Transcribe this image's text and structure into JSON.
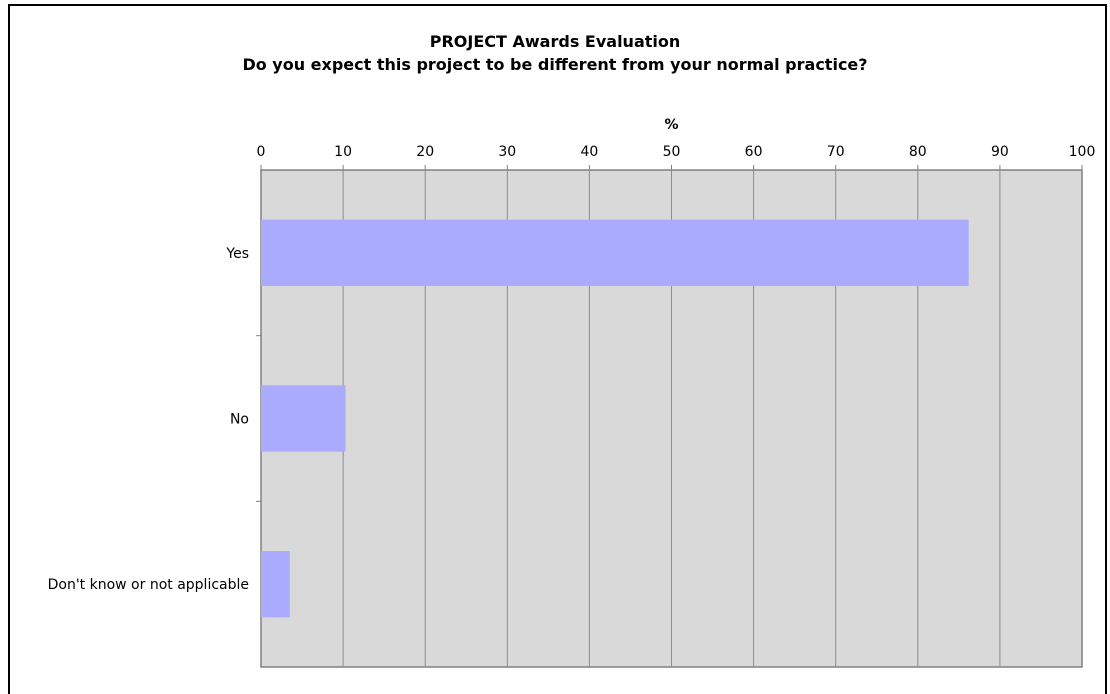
{
  "chart_data": {
    "type": "bar",
    "orientation": "horizontal",
    "title": "PROJECT Awards Evaluation",
    "subtitle": "Do you expect this project to be different from your normal practice?",
    "xlabel": "%",
    "ylabel": "",
    "xlim": [
      0,
      100
    ],
    "xticks": [
      "0",
      "10",
      "20",
      "30",
      "40",
      "50",
      "60",
      "70",
      "80",
      "90",
      "100"
    ],
    "categories": [
      "Yes",
      "No",
      "Don't know or not applicable"
    ],
    "values": [
      86.2,
      10.3,
      3.5
    ],
    "grid": true,
    "axis_position": "top",
    "colors": {
      "bar": "#aaaaff",
      "plot_background": "#d9d9d9",
      "gridline": "#8c8c8c",
      "axis": "#808080"
    }
  }
}
